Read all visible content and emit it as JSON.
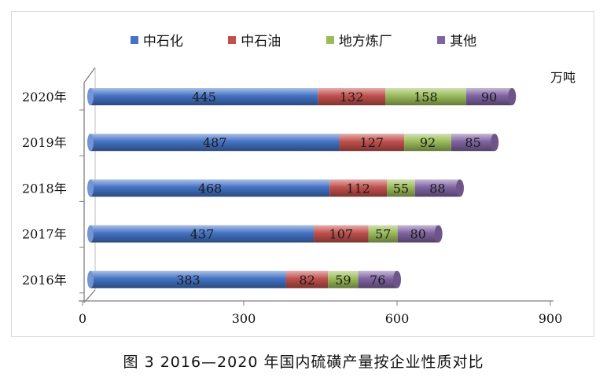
{
  "chart_data": {
    "type": "bar",
    "orientation": "horizontal",
    "stacked": true,
    "categories": [
      "2020年",
      "2019年",
      "2018年",
      "2017年",
      "2016年"
    ],
    "series": [
      {
        "name": "中石化",
        "color": "#4472c4",
        "values": [
          445,
          487,
          468,
          437,
          383
        ]
      },
      {
        "name": "中石油",
        "color": "#c0504d",
        "values": [
          132,
          127,
          112,
          107,
          82
        ]
      },
      {
        "name": "地方炼厂",
        "color": "#9bbb59",
        "values": [
          158,
          92,
          55,
          57,
          59
        ]
      },
      {
        "name": "其他",
        "color": "#8064a2",
        "values": [
          90,
          85,
          88,
          80,
          76
        ]
      }
    ],
    "xlim": [
      0,
      900
    ],
    "xticks": [
      "0",
      "300",
      "600",
      "900"
    ],
    "unit": "万吨",
    "legend_position": "top",
    "grid": false
  },
  "caption": "图 3 2016—2020 年国内硫磺产量按企业性质对比"
}
